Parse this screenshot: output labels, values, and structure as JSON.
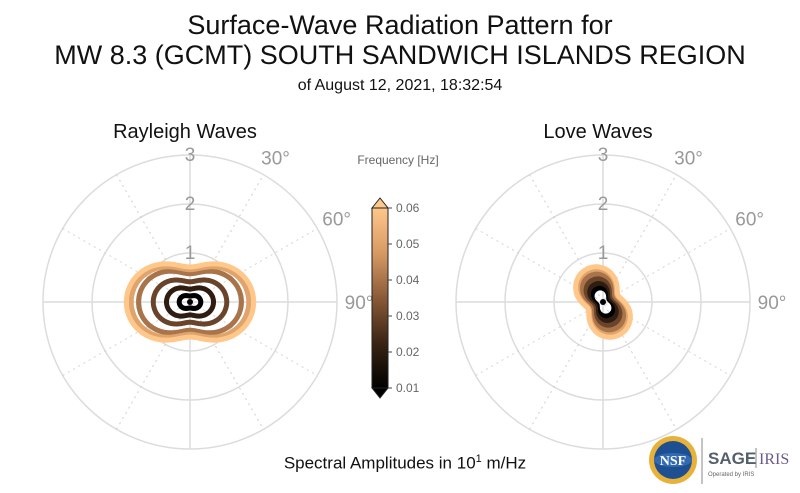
{
  "header": {
    "title_line1": "Surface-Wave Radiation Pattern for",
    "title_line2": "MW 8.3 (GCMT) SOUTH SANDWICH ISLANDS REGION",
    "subtitle": "of August 12, 2021, 18:32:54"
  },
  "footer": {
    "label_prefix": "Spectral Amplitudes in ",
    "label_base": "10",
    "label_exponent": "1",
    "label_suffix": " m/Hz"
  },
  "logos": {
    "nsf": "NSF",
    "sage": "SAGE",
    "iris": "IRIS",
    "operated": "Operated by IRIS"
  },
  "colorbar": {
    "title": "Frequency [Hz]",
    "ticks": [
      "0.06",
      "0.05",
      "0.04",
      "0.03",
      "0.02",
      "0.01"
    ],
    "range": [
      0.01,
      0.06
    ]
  },
  "chart_data": [
    {
      "type": "polar",
      "title": "Rayleigh Waves",
      "r_ticks": [
        "1",
        "2",
        "3"
      ],
      "angle_ticks": [
        "30°",
        "60°",
        "90°"
      ],
      "rmax": 3,
      "frequencies_hz": [
        0.01,
        0.02,
        0.03,
        0.04,
        0.05,
        0.06
      ],
      "series": [
        {
          "values": [
            0.22,
            0.22,
            0.22,
            0.22,
            0.22,
            0.22
          ]
        },
        {
          "values": [
            0.25,
            0.25,
            0.25,
            0.25,
            0.25,
            0.25
          ]
        },
        {
          "values": [
            0.3,
            0.3,
            0.3,
            0.3,
            0.3,
            0.3
          ]
        },
        {
          "values": [
            0.36,
            0.36,
            0.36,
            0.36,
            0.36,
            0.36
          ]
        },
        {
          "values": [
            0.42,
            0.42,
            0.42,
            0.42,
            0.42,
            0.42
          ]
        },
        {
          "values": [
            0.48,
            0.48,
            0.48,
            0.48,
            0.48,
            0.48
          ]
        },
        {
          "values": [
            0.6,
            0.6,
            0.6,
            0.6,
            0.6,
            0.6
          ]
        },
        {
          "values": [
            0.75,
            0.75,
            0.75,
            0.75,
            0.75,
            0.75
          ]
        },
        {
          "values": [
            0.9,
            0.9,
            0.9,
            0.9,
            0.9,
            0.9
          ]
        },
        {
          "values": [
            1.05,
            1.05,
            1.05,
            1.05,
            1.05,
            1.05
          ]
        },
        {
          "values": [
            1.2,
            1.2,
            1.2,
            1.2,
            1.2,
            1.2
          ]
        },
        {
          "values": [
            1.3,
            1.3,
            1.3,
            1.3,
            1.3,
            1.3
          ]
        }
      ],
      "peak_amplitudes": [
        0.22,
        0.48,
        0.75,
        1.05,
        1.2,
        1.3
      ],
      "pattern": "two-lobed, maxima toward 90° and 270°",
      "minor_amplitude_ratio": 0.55
    },
    {
      "type": "polar",
      "title": "Love Waves",
      "r_ticks": [
        "1",
        "2",
        "3"
      ],
      "angle_ticks": [
        "30°",
        "60°",
        "90°"
      ],
      "rmax": 3,
      "frequencies_hz": [
        0.01,
        0.02,
        0.03,
        0.04,
        0.05,
        0.06
      ],
      "peak_amplitudes": [
        0.3,
        0.4,
        0.5,
        0.6,
        0.7,
        0.75
      ],
      "pattern": "two-lobed, maxima toward 155° and 335°",
      "minor_amplitude_ratio": 0.45
    }
  ]
}
